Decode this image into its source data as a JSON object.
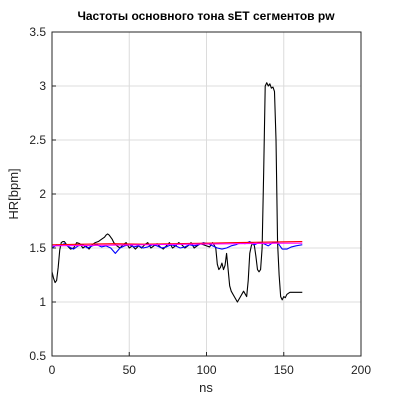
{
  "chart_data": {
    "type": "line",
    "title": "Частоты основного тона sET сегментов pw",
    "xlabel": "ns",
    "ylabel": "HR[bpm]",
    "xlim": [
      0,
      200
    ],
    "ylim": [
      0.5,
      3.5
    ],
    "xticks": [
      0,
      50,
      100,
      150,
      200
    ],
    "yticks": [
      0.5,
      1,
      1.5,
      2,
      2.5,
      3,
      3.5
    ],
    "grid": true,
    "series": [
      {
        "color": "#000000",
        "x": [
          0,
          1,
          2,
          3,
          4,
          5,
          6,
          7,
          8,
          10,
          12,
          14,
          16,
          18,
          20,
          22,
          24,
          26,
          28,
          30,
          32,
          34,
          35,
          36,
          37,
          38,
          39,
          40,
          42,
          44,
          46,
          48,
          50,
          52,
          54,
          56,
          58,
          60,
          62,
          64,
          66,
          68,
          70,
          72,
          74,
          76,
          78,
          80,
          82,
          84,
          86,
          88,
          90,
          92,
          94,
          96,
          98,
          100,
          102,
          104,
          106,
          107,
          108,
          109,
          110,
          111,
          112,
          113,
          114,
          115,
          116,
          118,
          120,
          122,
          124,
          126,
          127,
          128,
          129,
          130,
          131,
          132,
          133,
          134,
          135,
          136,
          137,
          138,
          139,
          140,
          141,
          142,
          143,
          144,
          145,
          146,
          147,
          148,
          149,
          150,
          151,
          152,
          153,
          154,
          156,
          158,
          160,
          162
        ],
        "y": [
          1.28,
          1.22,
          1.18,
          1.2,
          1.32,
          1.48,
          1.55,
          1.56,
          1.56,
          1.52,
          1.49,
          1.5,
          1.55,
          1.54,
          1.5,
          1.52,
          1.49,
          1.53,
          1.55,
          1.56,
          1.58,
          1.6,
          1.62,
          1.63,
          1.62,
          1.6,
          1.58,
          1.55,
          1.52,
          1.5,
          1.53,
          1.55,
          1.5,
          1.52,
          1.49,
          1.52,
          1.5,
          1.53,
          1.55,
          1.5,
          1.52,
          1.54,
          1.51,
          1.49,
          1.52,
          1.55,
          1.5,
          1.52,
          1.55,
          1.53,
          1.5,
          1.52,
          1.55,
          1.5,
          1.52,
          1.54,
          1.53,
          1.52,
          1.51,
          1.55,
          1.5,
          1.35,
          1.3,
          1.32,
          1.36,
          1.3,
          1.34,
          1.45,
          1.3,
          1.15,
          1.1,
          1.05,
          1.0,
          1.05,
          1.1,
          1.05,
          1.2,
          1.45,
          1.52,
          1.55,
          1.52,
          1.42,
          1.3,
          1.28,
          1.3,
          1.5,
          2.2,
          3.0,
          3.03,
          3.0,
          3.02,
          2.98,
          2.99,
          2.95,
          2.5,
          1.55,
          1.25,
          1.05,
          1.02,
          1.05,
          1.04,
          1.07,
          1.08,
          1.09,
          1.09,
          1.09,
          1.09,
          1.09
        ]
      },
      {
        "color": "#0000ff",
        "x": [
          0,
          3,
          5,
          8,
          11,
          14,
          17,
          20,
          23,
          26,
          29,
          32,
          35,
          38,
          41,
          44,
          47,
          50,
          53,
          56,
          59,
          62,
          65,
          68,
          71,
          74,
          77,
          80,
          83,
          86,
          89,
          92,
          95,
          98,
          101,
          104,
          107,
          110,
          113,
          116,
          119,
          122,
          125,
          128,
          131,
          134,
          137,
          140,
          143,
          146,
          149,
          152,
          155,
          158,
          162
        ],
        "y": [
          1.5,
          1.53,
          1.52,
          1.54,
          1.51,
          1.49,
          1.52,
          1.53,
          1.5,
          1.52,
          1.53,
          1.51,
          1.52,
          1.5,
          1.45,
          1.5,
          1.52,
          1.53,
          1.51,
          1.52,
          1.5,
          1.51,
          1.53,
          1.52,
          1.5,
          1.51,
          1.53,
          1.52,
          1.5,
          1.51,
          1.53,
          1.52,
          1.53,
          1.55,
          1.54,
          1.52,
          1.5,
          1.49,
          1.5,
          1.52,
          1.53,
          1.55,
          1.54,
          1.56,
          1.53,
          1.55,
          1.54,
          1.52,
          1.55,
          1.55,
          1.49,
          1.49,
          1.51,
          1.52,
          1.53
        ]
      },
      {
        "color": "#ff0000",
        "x": [
          0,
          20,
          40,
          60,
          80,
          100,
          120,
          140,
          160,
          162
        ],
        "y": [
          1.53,
          1.535,
          1.54,
          1.535,
          1.54,
          1.545,
          1.55,
          1.555,
          1.56,
          1.56
        ]
      },
      {
        "color": "#ff00ff",
        "x": [
          0,
          30,
          60,
          90,
          120,
          150,
          162
        ],
        "y": [
          1.52,
          1.525,
          1.53,
          1.535,
          1.54,
          1.545,
          1.545
        ]
      }
    ]
  }
}
